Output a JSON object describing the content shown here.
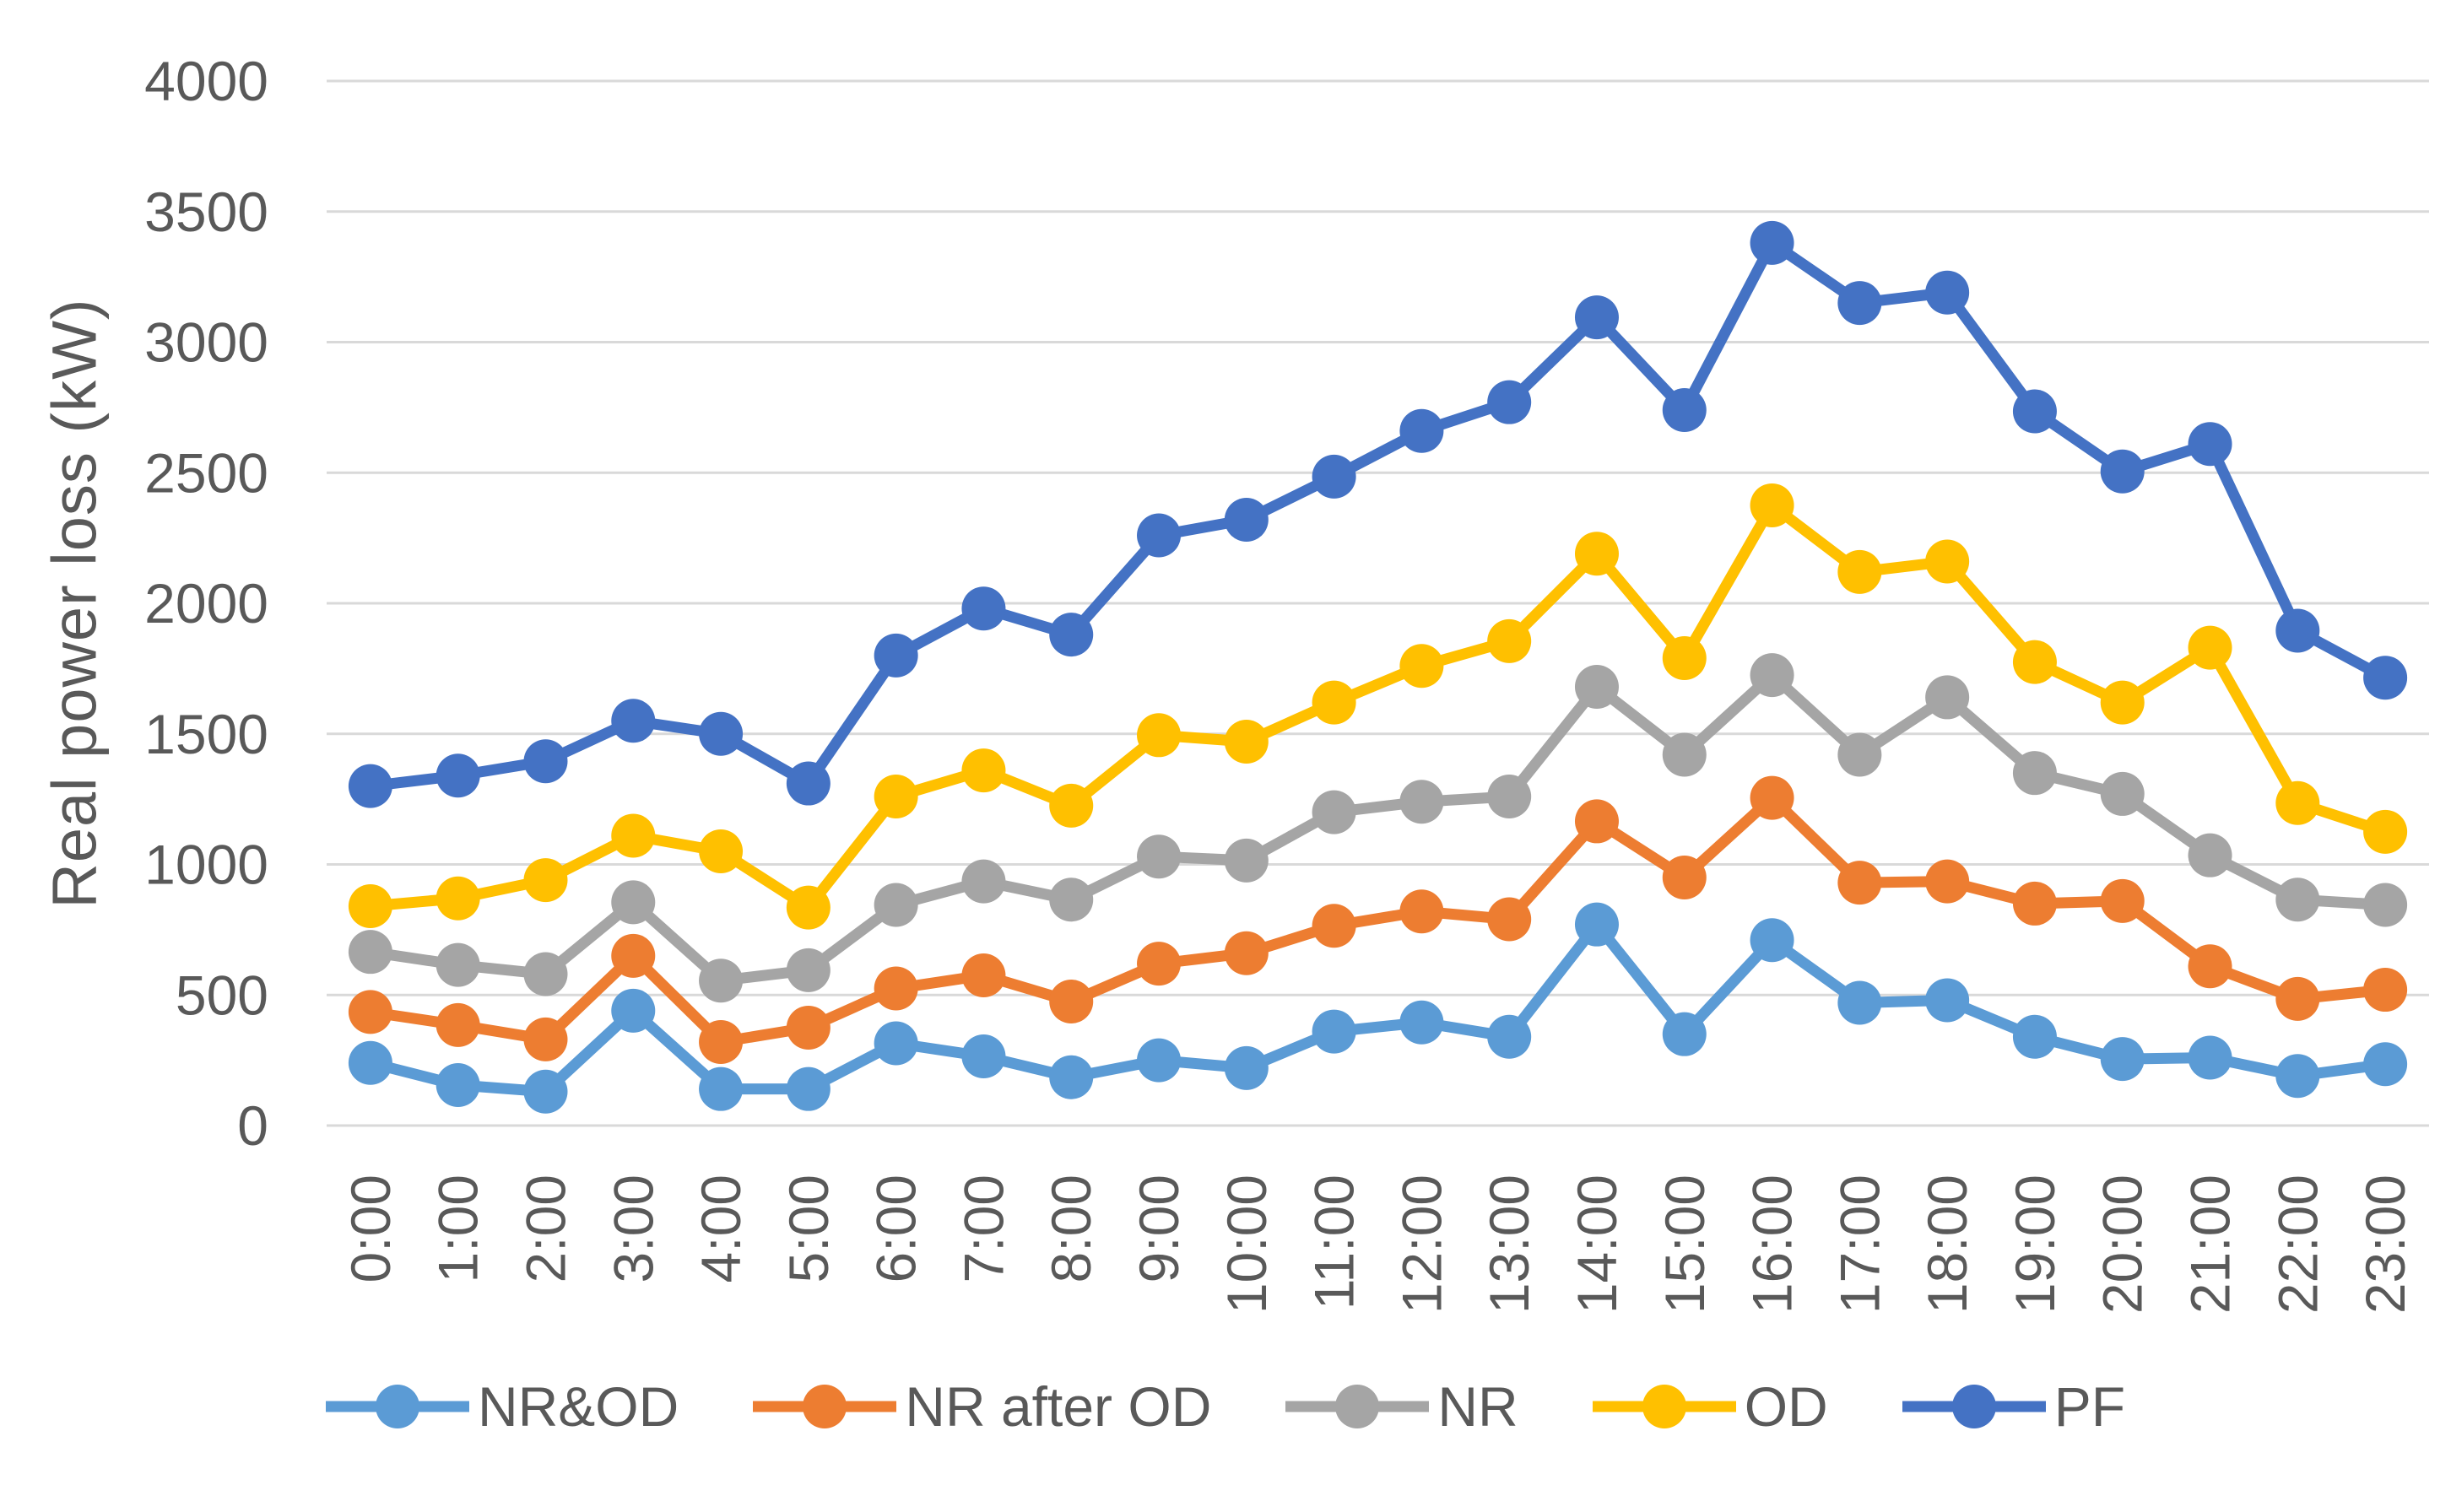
{
  "chart_data": {
    "type": "line",
    "title": "",
    "xlabel": "",
    "ylabel": "Real power loss (kW)",
    "ylim": [
      0,
      4000
    ],
    "y_ticks": [
      0,
      500,
      1000,
      1500,
      2000,
      2500,
      3000,
      3500,
      4000
    ],
    "grid": "horizontal",
    "legend_position": "bottom",
    "marker": "circle",
    "categories": [
      "0:00",
      "1:00",
      "2:00",
      "3:00",
      "4:00",
      "5:00",
      "6:00",
      "7:00",
      "8:00",
      "9:00",
      "10:00",
      "11:00",
      "12:00",
      "13:00",
      "14:00",
      "15:00",
      "16:00",
      "17:00",
      "18:00",
      "19:00",
      "20:00",
      "21:00",
      "22:00",
      "23:00"
    ],
    "series": [
      {
        "name": "NR&OD",
        "color": "#5B9BD5",
        "values": [
          240,
          155,
          130,
          440,
          140,
          140,
          315,
          265,
          185,
          250,
          220,
          360,
          395,
          340,
          770,
          350,
          710,
          470,
          480,
          340,
          255,
          260,
          190,
          235
        ]
      },
      {
        "name": "NR after OD",
        "color": "#ED7D31",
        "values": [
          435,
          385,
          330,
          650,
          320,
          375,
          525,
          575,
          475,
          620,
          660,
          765,
          820,
          790,
          1165,
          950,
          1255,
          930,
          935,
          850,
          860,
          610,
          485,
          520
        ]
      },
      {
        "name": "NR",
        "color": "#A5A5A5",
        "values": [
          665,
          615,
          580,
          855,
          555,
          595,
          845,
          935,
          865,
          1030,
          1015,
          1200,
          1240,
          1260,
          1680,
          1420,
          1725,
          1420,
          1640,
          1350,
          1270,
          1035,
          865,
          845
        ]
      },
      {
        "name": "OD",
        "color": "#FFC000",
        "values": [
          840,
          870,
          940,
          1110,
          1050,
          835,
          1260,
          1360,
          1225,
          1495,
          1470,
          1620,
          1760,
          1855,
          2190,
          1790,
          2375,
          2120,
          2160,
          1775,
          1620,
          1830,
          1235,
          1125
        ]
      },
      {
        "name": "PF",
        "color": "#4472C4",
        "values": [
          1300,
          1340,
          1395,
          1550,
          1500,
          1310,
          1800,
          1980,
          1880,
          2260,
          2320,
          2485,
          2660,
          2770,
          3095,
          2740,
          3380,
          3150,
          3190,
          2735,
          2505,
          2610,
          1895,
          1715
        ]
      }
    ]
  },
  "styles": {
    "background": "#FFFFFF",
    "gridline_color": "#D9D9D9",
    "text_color": "#595959"
  }
}
